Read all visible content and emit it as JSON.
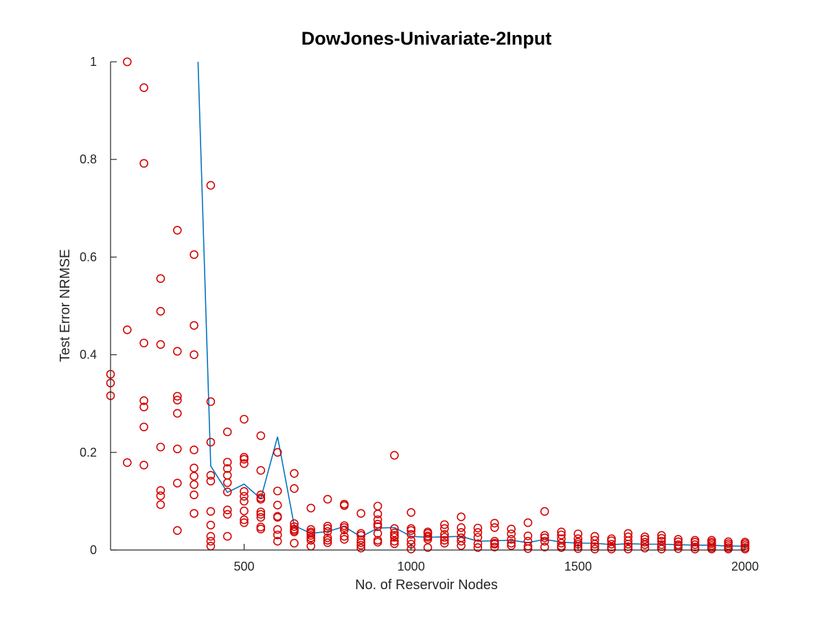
{
  "chart_data": {
    "type": "scatter",
    "title": "DowJones-Univariate-2Input",
    "xlabel": "No. of Reservoir Nodes",
    "ylabel": "Test Error NRMSE",
    "xlim": [
      100,
      2000
    ],
    "ylim": [
      0,
      1
    ],
    "xticks": [
      500,
      1000,
      1500,
      2000
    ],
    "yticks": [
      0,
      0.2,
      0.4,
      0.6,
      0.8,
      1
    ],
    "xtick_labels": [
      "500",
      "1000",
      "1500",
      "2000"
    ],
    "ytick_labels": [
      "0",
      "0.2",
      "0.4",
      "0.6",
      "0.8",
      "1"
    ],
    "grid": false,
    "legend": "none",
    "colors": {
      "scatter": "#d40000",
      "line": "#0072bd",
      "axes": "#262626"
    },
    "series": [
      {
        "kind": "scatter",
        "marker": "circle",
        "points": [
          [
            100,
            0.36
          ],
          [
            100,
            0.342
          ],
          [
            100,
            0.316
          ],
          [
            150,
            1.0
          ],
          [
            150,
            0.451
          ],
          [
            150,
            0.179
          ],
          [
            200,
            0.947
          ],
          [
            200,
            0.792
          ],
          [
            200,
            0.424
          ],
          [
            200,
            0.306
          ],
          [
            200,
            0.293
          ],
          [
            200,
            0.252
          ],
          [
            200,
            0.174
          ],
          [
            250,
            0.556
          ],
          [
            250,
            0.489
          ],
          [
            250,
            0.421
          ],
          [
            250,
            0.211
          ],
          [
            250,
            0.122
          ],
          [
            250,
            0.111
          ],
          [
            250,
            0.093
          ],
          [
            300,
            0.655
          ],
          [
            300,
            0.407
          ],
          [
            300,
            0.315
          ],
          [
            300,
            0.307
          ],
          [
            300,
            0.28
          ],
          [
            300,
            0.207
          ],
          [
            300,
            0.137
          ],
          [
            300,
            0.04
          ],
          [
            350,
            0.605
          ],
          [
            350,
            0.46
          ],
          [
            350,
            0.4
          ],
          [
            350,
            0.205
          ],
          [
            350,
            0.168
          ],
          [
            350,
            0.151
          ],
          [
            350,
            0.134
          ],
          [
            350,
            0.113
          ],
          [
            350,
            0.075
          ],
          [
            400,
            0.747
          ],
          [
            400,
            0.304
          ],
          [
            400,
            0.221
          ],
          [
            400,
            0.153
          ],
          [
            400,
            0.141
          ],
          [
            400,
            0.079
          ],
          [
            400,
            0.051
          ],
          [
            400,
            0.028
          ],
          [
            400,
            0.018
          ],
          [
            400,
            0.008
          ],
          [
            450,
            0.242
          ],
          [
            450,
            0.18
          ],
          [
            450,
            0.167
          ],
          [
            450,
            0.153
          ],
          [
            450,
            0.138
          ],
          [
            450,
            0.119
          ],
          [
            450,
            0.082
          ],
          [
            450,
            0.073
          ],
          [
            450,
            0.028
          ],
          [
            500,
            0.268
          ],
          [
            500,
            0.19
          ],
          [
            500,
            0.186
          ],
          [
            500,
            0.177
          ],
          [
            500,
            0.12
          ],
          [
            500,
            0.11
          ],
          [
            500,
            0.1
          ],
          [
            500,
            0.08
          ],
          [
            500,
            0.062
          ],
          [
            500,
            0.056
          ],
          [
            550,
            0.234
          ],
          [
            550,
            0.163
          ],
          [
            550,
            0.113
          ],
          [
            550,
            0.107
          ],
          [
            550,
            0.104
          ],
          [
            550,
            0.078
          ],
          [
            550,
            0.073
          ],
          [
            550,
            0.067
          ],
          [
            550,
            0.047
          ],
          [
            550,
            0.043
          ],
          [
            600,
            0.2
          ],
          [
            600,
            0.121
          ],
          [
            600,
            0.092
          ],
          [
            600,
            0.069
          ],
          [
            600,
            0.067
          ],
          [
            600,
            0.042
          ],
          [
            600,
            0.031
          ],
          [
            600,
            0.018
          ],
          [
            650,
            0.157
          ],
          [
            650,
            0.126
          ],
          [
            650,
            0.054
          ],
          [
            650,
            0.048
          ],
          [
            650,
            0.043
          ],
          [
            650,
            0.04
          ],
          [
            650,
            0.037
          ],
          [
            650,
            0.014
          ],
          [
            700,
            0.086
          ],
          [
            700,
            0.042
          ],
          [
            700,
            0.037
          ],
          [
            700,
            0.034
          ],
          [
            700,
            0.03
          ],
          [
            700,
            0.025
          ],
          [
            700,
            0.02
          ],
          [
            700,
            0.008
          ],
          [
            750,
            0.104
          ],
          [
            750,
            0.049
          ],
          [
            750,
            0.044
          ],
          [
            750,
            0.038
          ],
          [
            750,
            0.025
          ],
          [
            750,
            0.02
          ],
          [
            750,
            0.015
          ],
          [
            800,
            0.094
          ],
          [
            800,
            0.091
          ],
          [
            800,
            0.05
          ],
          [
            800,
            0.046
          ],
          [
            800,
            0.041
          ],
          [
            800,
            0.028
          ],
          [
            800,
            0.022
          ],
          [
            850,
            0.075
          ],
          [
            850,
            0.034
          ],
          [
            850,
            0.03
          ],
          [
            850,
            0.021
          ],
          [
            850,
            0.015
          ],
          [
            850,
            0.01
          ],
          [
            850,
            0.004
          ],
          [
            900,
            0.09
          ],
          [
            900,
            0.074
          ],
          [
            900,
            0.062
          ],
          [
            900,
            0.053
          ],
          [
            900,
            0.048
          ],
          [
            900,
            0.034
          ],
          [
            900,
            0.02
          ],
          [
            900,
            0.016
          ],
          [
            950,
            0.194
          ],
          [
            950,
            0.044
          ],
          [
            950,
            0.035
          ],
          [
            950,
            0.03
          ],
          [
            950,
            0.026
          ],
          [
            950,
            0.018
          ],
          [
            950,
            0.013
          ],
          [
            1000,
            0.077
          ],
          [
            1000,
            0.044
          ],
          [
            1000,
            0.04
          ],
          [
            1000,
            0.032
          ],
          [
            1000,
            0.02
          ],
          [
            1000,
            0.012
          ],
          [
            1000,
            0.002
          ],
          [
            1050,
            0.037
          ],
          [
            1050,
            0.034
          ],
          [
            1050,
            0.029
          ],
          [
            1050,
            0.026
          ],
          [
            1050,
            0.022
          ],
          [
            1050,
            0.005
          ],
          [
            1100,
            0.052
          ],
          [
            1100,
            0.044
          ],
          [
            1100,
            0.032
          ],
          [
            1100,
            0.026
          ],
          [
            1100,
            0.02
          ],
          [
            1100,
            0.014
          ],
          [
            1150,
            0.068
          ],
          [
            1150,
            0.046
          ],
          [
            1150,
            0.036
          ],
          [
            1150,
            0.025
          ],
          [
            1150,
            0.018
          ],
          [
            1150,
            0.009
          ],
          [
            1200,
            0.045
          ],
          [
            1200,
            0.036
          ],
          [
            1200,
            0.026
          ],
          [
            1200,
            0.013
          ],
          [
            1200,
            0.005
          ],
          [
            1250,
            0.055
          ],
          [
            1250,
            0.046
          ],
          [
            1250,
            0.018
          ],
          [
            1250,
            0.014
          ],
          [
            1250,
            0.012
          ],
          [
            1250,
            0.006
          ],
          [
            1300,
            0.043
          ],
          [
            1300,
            0.033
          ],
          [
            1300,
            0.022
          ],
          [
            1300,
            0.014
          ],
          [
            1300,
            0.009
          ],
          [
            1350,
            0.056
          ],
          [
            1350,
            0.029
          ],
          [
            1350,
            0.018
          ],
          [
            1350,
            0.008
          ],
          [
            1350,
            0.003
          ],
          [
            1400,
            0.079
          ],
          [
            1400,
            0.03
          ],
          [
            1400,
            0.025
          ],
          [
            1400,
            0.018
          ],
          [
            1400,
            0.006
          ],
          [
            1450,
            0.037
          ],
          [
            1450,
            0.031
          ],
          [
            1450,
            0.023
          ],
          [
            1450,
            0.014
          ],
          [
            1450,
            0.008
          ],
          [
            1450,
            0.005
          ],
          [
            1500,
            0.033
          ],
          [
            1500,
            0.023
          ],
          [
            1500,
            0.016
          ],
          [
            1500,
            0.012
          ],
          [
            1500,
            0.007
          ],
          [
            1500,
            0.003
          ],
          [
            1550,
            0.028
          ],
          [
            1550,
            0.02
          ],
          [
            1550,
            0.012
          ],
          [
            1550,
            0.007
          ],
          [
            1550,
            0.002
          ],
          [
            1600,
            0.023
          ],
          [
            1600,
            0.019
          ],
          [
            1600,
            0.012
          ],
          [
            1600,
            0.006
          ],
          [
            1600,
            0.002
          ],
          [
            1650,
            0.034
          ],
          [
            1650,
            0.027
          ],
          [
            1650,
            0.019
          ],
          [
            1650,
            0.012
          ],
          [
            1650,
            0.007
          ],
          [
            1650,
            0.002
          ],
          [
            1700,
            0.027
          ],
          [
            1700,
            0.022
          ],
          [
            1700,
            0.016
          ],
          [
            1700,
            0.011
          ],
          [
            1700,
            0.004
          ],
          [
            1750,
            0.03
          ],
          [
            1750,
            0.024
          ],
          [
            1750,
            0.018
          ],
          [
            1750,
            0.011
          ],
          [
            1750,
            0.007
          ],
          [
            1750,
            0.002
          ],
          [
            1800,
            0.022
          ],
          [
            1800,
            0.017
          ],
          [
            1800,
            0.011
          ],
          [
            1800,
            0.008
          ],
          [
            1800,
            0.003
          ],
          [
            1850,
            0.02
          ],
          [
            1850,
            0.016
          ],
          [
            1850,
            0.011
          ],
          [
            1850,
            0.006
          ],
          [
            1850,
            0.002
          ],
          [
            1900,
            0.02
          ],
          [
            1900,
            0.016
          ],
          [
            1900,
            0.013
          ],
          [
            1900,
            0.009
          ],
          [
            1900,
            0.005
          ],
          [
            1900,
            0.002
          ],
          [
            1950,
            0.017
          ],
          [
            1950,
            0.013
          ],
          [
            1950,
            0.009
          ],
          [
            1950,
            0.005
          ],
          [
            1950,
            0.002
          ],
          [
            2000,
            0.016
          ],
          [
            2000,
            0.013
          ],
          [
            2000,
            0.009
          ],
          [
            2000,
            0.005
          ],
          [
            2000,
            0.002
          ]
        ]
      },
      {
        "kind": "line",
        "x": [
          362,
          400,
          450,
          500,
          550,
          600,
          650,
          700,
          750,
          800,
          850,
          900,
          950,
          1000,
          1050,
          1100,
          1150,
          1200,
          1250,
          1300,
          1350,
          1400,
          1450,
          1500,
          1550,
          1600,
          1650,
          1700,
          1750,
          1800,
          1850,
          1900,
          1950,
          2000
        ],
        "y": [
          1.0,
          0.172,
          0.118,
          0.135,
          0.105,
          0.232,
          0.05,
          0.034,
          0.038,
          0.048,
          0.027,
          0.045,
          0.046,
          0.028,
          0.026,
          0.027,
          0.028,
          0.018,
          0.019,
          0.02,
          0.015,
          0.022,
          0.016,
          0.014,
          0.014,
          0.011,
          0.013,
          0.012,
          0.012,
          0.011,
          0.01,
          0.01,
          0.008,
          0.008
        ]
      }
    ]
  }
}
